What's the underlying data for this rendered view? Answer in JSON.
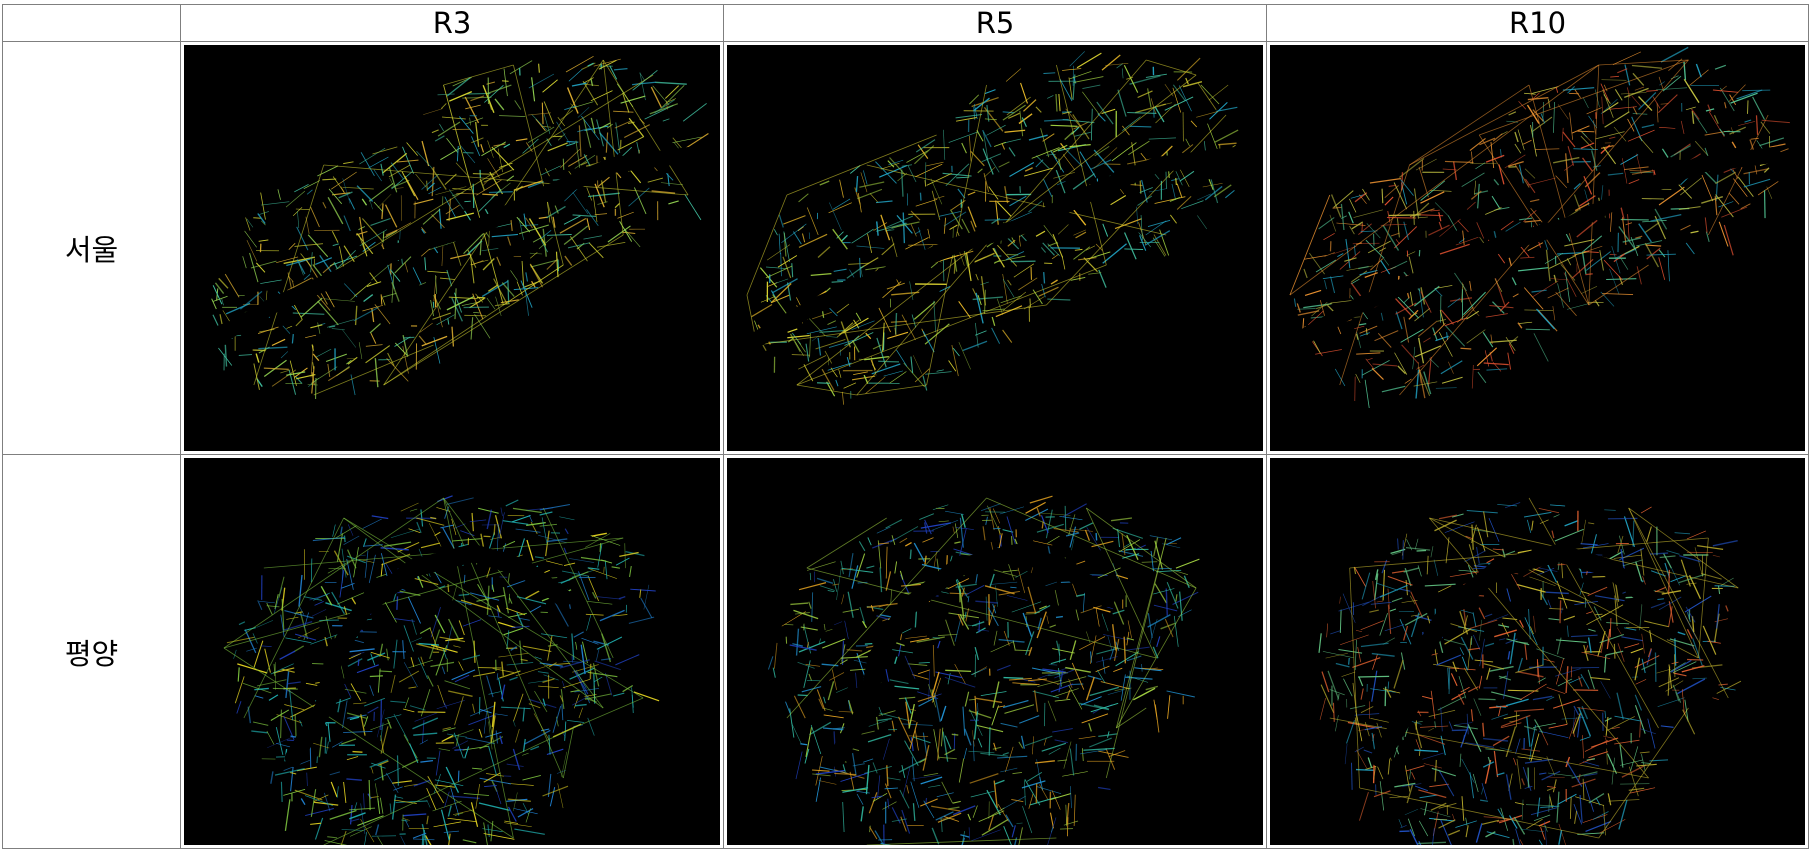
{
  "table": {
    "corner": "",
    "columns": [
      "R3",
      "R5",
      "R10"
    ],
    "rows": [
      {
        "label": "서울",
        "maps": [
          {
            "radius": "R3",
            "palette": [
              "#20a0c0",
              "#40c0a0",
              "#90d050",
              "#d0d030",
              "#e0b030"
            ]
          },
          {
            "radius": "R5",
            "palette": [
              "#20a0c0",
              "#40c0a0",
              "#a0d040",
              "#d8d030",
              "#e8b828"
            ]
          },
          {
            "radius": "R10",
            "palette": [
              "#20a0c0",
              "#50c090",
              "#c0c040",
              "#e89030",
              "#e05030"
            ]
          }
        ]
      },
      {
        "label": "평양",
        "maps": [
          {
            "radius": "R3",
            "palette": [
              "#2040c0",
              "#2080d0",
              "#20b0b0",
              "#80c840",
              "#e0d020"
            ]
          },
          {
            "radius": "R5",
            "palette": [
              "#2040c0",
              "#2090d0",
              "#30b8a0",
              "#a0d040",
              "#e0a020"
            ]
          },
          {
            "radius": "R10",
            "palette": [
              "#2050c0",
              "#20a0c0",
              "#60c080",
              "#d0c030",
              "#e06030"
            ]
          }
        ]
      }
    ]
  }
}
